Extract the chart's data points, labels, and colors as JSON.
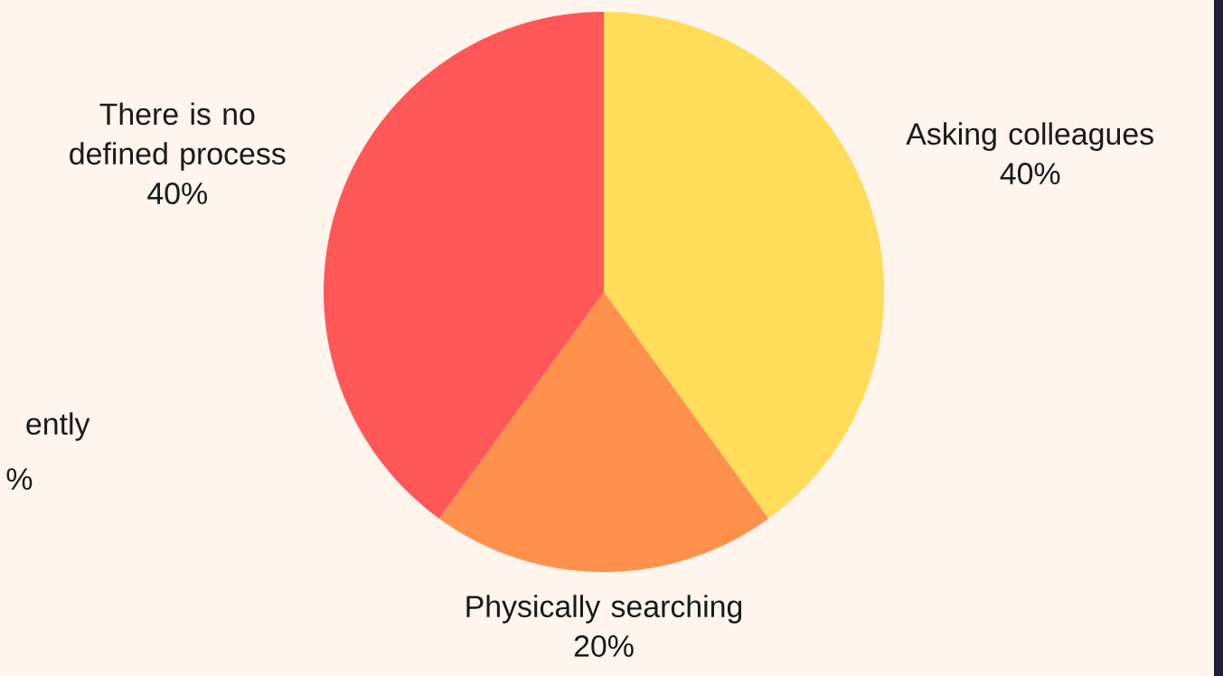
{
  "chart_data": {
    "type": "pie",
    "categories": [
      "Asking colleagues",
      "Physically searching",
      "There is no defined process"
    ],
    "values": [
      40,
      20,
      40
    ],
    "value_labels": [
      "40%",
      "20%",
      "40%"
    ],
    "colors": [
      "#ffdc5a",
      "#ff914d",
      "#ff5757"
    ],
    "annotations": [
      "ently",
      "%"
    ]
  }
}
